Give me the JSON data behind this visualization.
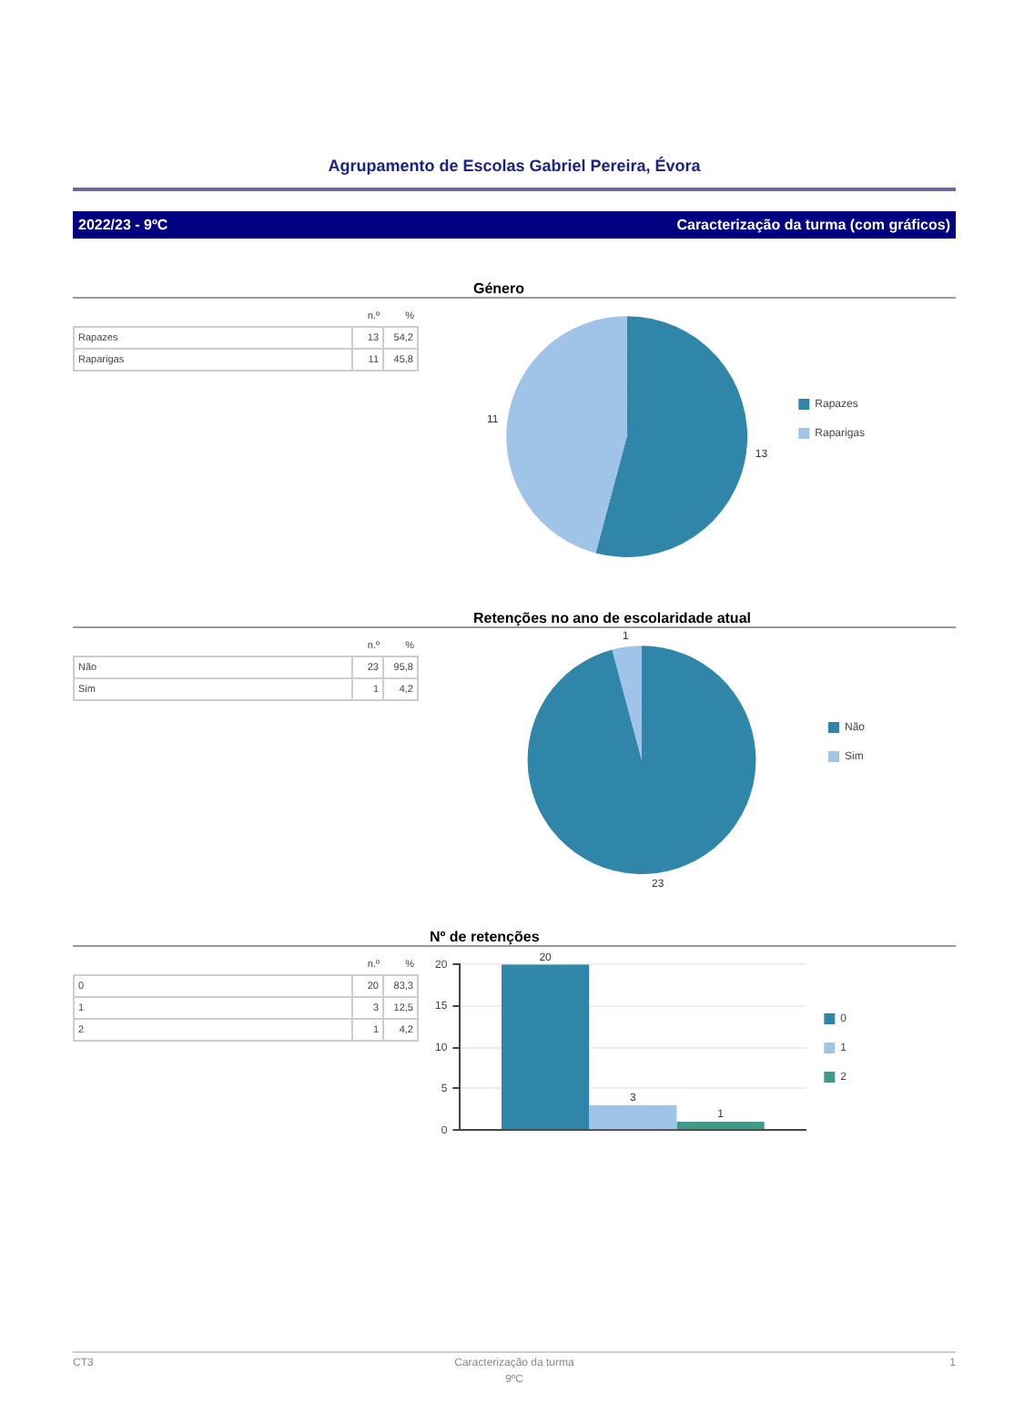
{
  "chart_data": [
    {
      "type": "pie",
      "title": "Género",
      "categories": [
        "Rapazes",
        "Raparigas"
      ],
      "values": [
        13,
        11
      ],
      "colors": [
        "#2f86a8",
        "#9fc4e8"
      ],
      "data_labels": true,
      "legend": "right",
      "annotations": [
        "n.º",
        "%",
        "13",
        "54,2",
        "11",
        "45,8",
        "Agrupamento de Escolas Gabriel Pereira, Évora",
        "2022/23 - 9ºC",
        "Caracterização da turma (com gráficos)"
      ]
    },
    {
      "type": "pie",
      "title": "Retenções no ano de escolaridade atual",
      "categories": [
        "Não",
        "Sim"
      ],
      "values": [
        23,
        1
      ],
      "colors": [
        "#2f86a8",
        "#9fc4e8"
      ],
      "data_labels": true,
      "legend": "right",
      "annotations": [
        "n.º",
        "%",
        "23",
        "95,8",
        "1",
        "4,2"
      ]
    },
    {
      "type": "bar",
      "title": "Nº de retenções",
      "categories": [
        null
      ],
      "series": [
        {
          "name": "0",
          "color": "#2f86a8",
          "values": [
            20
          ]
        },
        {
          "name": "1",
          "color": "#9fc4e8",
          "values": [
            3
          ]
        },
        {
          "name": "2",
          "color": "#3f9a8a",
          "values": [
            1
          ]
        }
      ],
      "ylim": [
        0,
        20
      ],
      "yticks": [
        0,
        5,
        10,
        15,
        20
      ],
      "grid": "y",
      "legend": "right",
      "data_labels": true,
      "annotations": [
        "n.º",
        "%",
        "20",
        "83,3",
        "3",
        "12,5",
        "1",
        "4,2",
        "CT3",
        "Caracterização da turma",
        "9ºC",
        "1"
      ]
    }
  ]
}
